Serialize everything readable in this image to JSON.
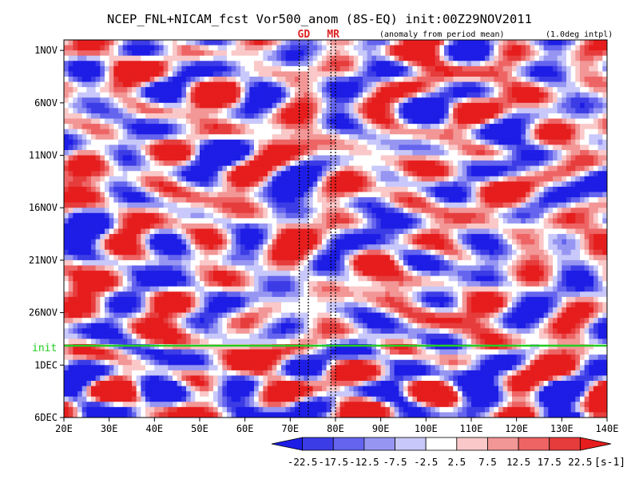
{
  "chart_data": {
    "type": "heatmap",
    "title": "NCEP_FNL+NICAM_fcst Vor500_anom (8S-EQ) init:00Z29NOV2011",
    "subtitle_left": "(anomaly from period mean)",
    "subtitle_right": "(1.0deg intpl)",
    "markers": [
      {
        "label": "GD",
        "x_range": [
          72,
          74
        ]
      },
      {
        "label": "MR",
        "x_range": [
          79,
          80
        ]
      }
    ],
    "init_line": {
      "label": "init",
      "date": "29NOV",
      "color": "#22cc22"
    },
    "x_axis": {
      "range": [
        20,
        140
      ],
      "ticks": [
        20,
        30,
        40,
        50,
        60,
        70,
        80,
        90,
        100,
        110,
        120,
        130,
        140
      ],
      "tick_labels": [
        "20E",
        "30E",
        "40E",
        "50E",
        "60E",
        "70E",
        "80E",
        "90E",
        "100E",
        "110E",
        "120E",
        "130E",
        "140E"
      ]
    },
    "y_axis": {
      "range_days": [
        "31OCT",
        "6DEC"
      ],
      "ticks": [
        "1NOV",
        "6NOV",
        "11NOV",
        "16NOV",
        "21NOV",
        "26NOV",
        "1DEC",
        "6DEC"
      ],
      "tick_labels": [
        "1NOV",
        "6NOV",
        "11NOV",
        "16NOV",
        "21NOV",
        "26NOV",
        "1DEC",
        "6DEC"
      ]
    },
    "colorbar": {
      "levels": [
        "-22.5",
        "-17.5",
        "-12.5",
        "-7.5",
        "-2.5",
        "2.5",
        "7.5",
        "12.5",
        "17.5",
        "22.5"
      ],
      "colors": [
        "#1d1de6",
        "#3c3ce6",
        "#6464ee",
        "#9696f2",
        "#c8c8fa",
        "#ffffff",
        "#fac8c8",
        "#f29696",
        "#ee6464",
        "#e63c3c",
        "#e61d1d"
      ],
      "unit": "[s-1]"
    }
  }
}
